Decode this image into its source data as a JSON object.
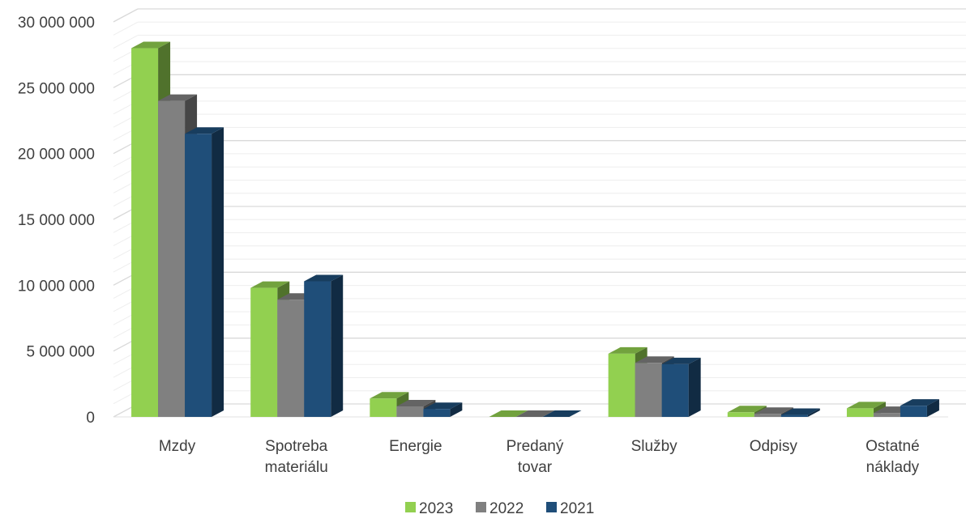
{
  "chart_data": {
    "type": "bar",
    "title": "",
    "xlabel": "",
    "ylabel": "",
    "categories": [
      [
        "Mzdy"
      ],
      [
        "Spotreba",
        "materiálu"
      ],
      [
        "Energie"
      ],
      [
        "Predaný",
        "tovar"
      ],
      [
        "Služby"
      ],
      [
        "Odpisy"
      ],
      [
        "Ostatné",
        "náklady"
      ]
    ],
    "series": [
      {
        "name": "2023",
        "color": "#92D050",
        "values": [
          28000000,
          9800000,
          1400000,
          0,
          4800000,
          350000,
          650000
        ]
      },
      {
        "name": "2022",
        "color": "#808080",
        "values": [
          24000000,
          8900000,
          800000,
          0,
          4100000,
          230000,
          300000
        ]
      },
      {
        "name": "2021",
        "color": "#1F4E79",
        "values": [
          21500000,
          10300000,
          600000,
          0,
          4000000,
          150000,
          850000
        ]
      }
    ],
    "ylim": [
      0,
      30000000
    ],
    "yticks": [
      0,
      5000000,
      10000000,
      15000000,
      20000000,
      25000000,
      30000000
    ],
    "ytick_labels": [
      "0",
      "5 000 000",
      "10 000 000",
      "15 000 000",
      "20 000 000",
      "25 000 000",
      "30 000 000"
    ],
    "grid": true,
    "legend_position": "bottom-center",
    "style": "3d-column"
  }
}
